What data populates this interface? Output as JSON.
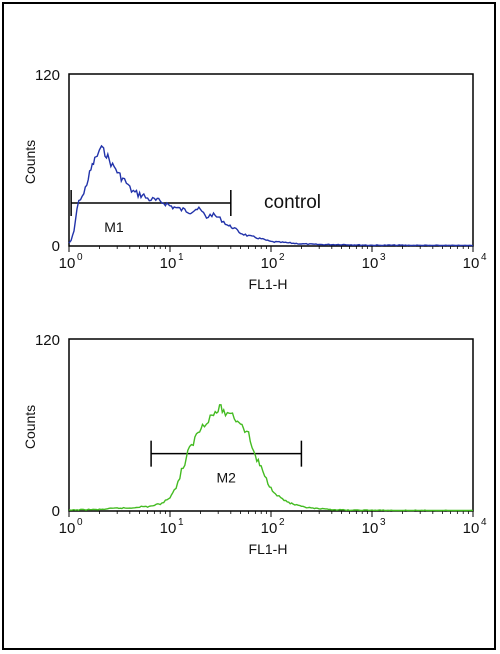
{
  "chart_data": [
    {
      "type": "line",
      "title": "",
      "xlabel": "FL1-H",
      "ylabel": "Counts",
      "x_scale": "log",
      "xlim": [
        1,
        10000
      ],
      "ylim": [
        0,
        120
      ],
      "x_ticks": [
        {
          "base": "10",
          "exp": "0"
        },
        {
          "base": "10",
          "exp": "1"
        },
        {
          "base": "10",
          "exp": "2"
        },
        {
          "base": "10",
          "exp": "3"
        },
        {
          "base": "10",
          "exp": "4"
        }
      ],
      "y_ticks": [
        "0",
        "120"
      ],
      "grid": false,
      "annotation": "control",
      "gate": {
        "label": "M1",
        "x_start": 1.05,
        "x_end": 40,
        "y": 30
      },
      "series": [
        {
          "color": "#2233aa",
          "x": [
            1.0,
            1.05,
            1.12,
            1.2,
            1.3,
            1.4,
            1.5,
            1.6,
            1.7,
            1.8,
            1.9,
            2.0,
            2.1,
            2.2,
            2.35,
            2.5,
            2.7,
            2.9,
            3.1,
            3.4,
            3.7,
            4.0,
            4.5,
            5.0,
            5.5,
            6.0,
            7.0,
            8.0,
            9.0,
            10,
            11,
            12,
            14,
            16,
            18,
            20,
            23,
            26,
            30,
            34,
            38,
            42,
            50,
            60,
            70,
            80,
            100,
            130,
            160,
            200,
            300,
            500,
            1000,
            2000,
            5000,
            10000
          ],
          "y": [
            2,
            4,
            10,
            26,
            34,
            36,
            44,
            50,
            56,
            60,
            63,
            67,
            68,
            66,
            64,
            60,
            56,
            54,
            50,
            47,
            44,
            40,
            37,
            36,
            35,
            33,
            32,
            31,
            30,
            28,
            27,
            26,
            25,
            24,
            26,
            25,
            20,
            22,
            20,
            17,
            14,
            13,
            9,
            7,
            6,
            5,
            3,
            2.5,
            2,
            1.5,
            1,
            1,
            0.5,
            0.5,
            0.3,
            0.3
          ]
        }
      ]
    },
    {
      "type": "line",
      "title": "",
      "xlabel": "FL1-H",
      "ylabel": "Counts",
      "x_scale": "log",
      "xlim": [
        1,
        10000
      ],
      "ylim": [
        0,
        120
      ],
      "x_ticks": [
        {
          "base": "10",
          "exp": "0"
        },
        {
          "base": "10",
          "exp": "1"
        },
        {
          "base": "10",
          "exp": "2"
        },
        {
          "base": "10",
          "exp": "3"
        },
        {
          "base": "10",
          "exp": "4"
        }
      ],
      "y_ticks": [
        "0",
        "120"
      ],
      "grid": false,
      "gate": {
        "label": "M2",
        "x_start": 6.5,
        "x_end": 200,
        "y": 40
      },
      "series": [
        {
          "color": "#44bb22",
          "x": [
            1.0,
            1.5,
            2.0,
            3.0,
            4.0,
            5.0,
            6.0,
            7.0,
            8.0,
            9.0,
            10,
            11,
            12,
            13,
            14,
            15,
            17,
            19,
            21,
            23,
            25,
            28,
            31,
            34,
            37,
            40,
            45,
            50,
            55,
            60,
            65,
            70,
            80,
            90,
            100,
            110,
            120,
            140,
            160,
            200,
            250,
            300,
            400,
            600,
            1000,
            2000,
            5000,
            10000
          ],
          "y": [
            0.5,
            1,
            1,
            2,
            2,
            3,
            3,
            4,
            5,
            7,
            10,
            14,
            20,
            28,
            33,
            40,
            48,
            55,
            60,
            63,
            66,
            68,
            72,
            70,
            67,
            69,
            64,
            62,
            57,
            53,
            45,
            38,
            30,
            22,
            16,
            13,
            10,
            7,
            5,
            3,
            2,
            1.5,
            1,
            0.5,
            0.5,
            0.3,
            0.3,
            0.3
          ]
        }
      ]
    }
  ]
}
